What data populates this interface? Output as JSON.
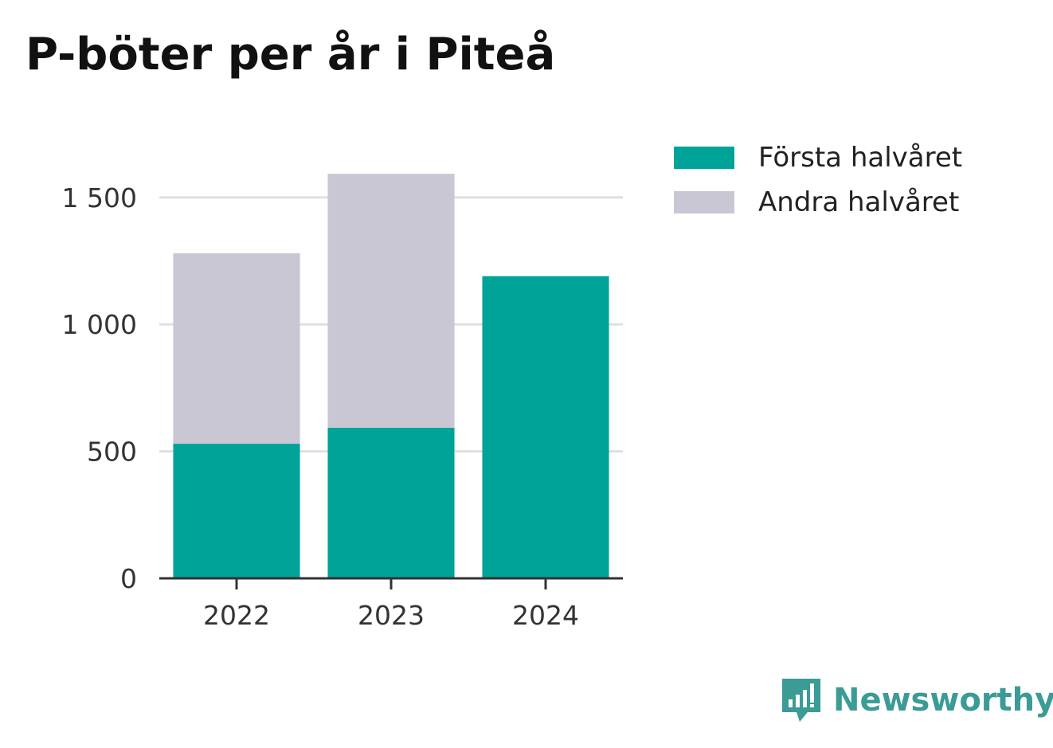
{
  "chart_data": {
    "type": "bar",
    "stacked": true,
    "title": "P-böter per år i Piteå",
    "categories": [
      "2022",
      "2023",
      "2024"
    ],
    "series": [
      {
        "name": "Första halvåret",
        "values": [
          530,
          593,
          1190
        ],
        "color": "#00a398"
      },
      {
        "name": "Andra halvåret",
        "values": [
          750,
          1000,
          null
        ],
        "color": "#c8c7d3"
      }
    ],
    "ylim": [
      0,
      1650
    ],
    "yticks": [
      0,
      500,
      1000,
      1500
    ],
    "ytick_labels": [
      "0",
      "500",
      "1 000",
      "1 500"
    ],
    "xlabel": "",
    "ylabel": "",
    "grid": true,
    "legend_position": "top-right"
  },
  "brand": {
    "name": "Newsworthy",
    "color": "#3b9b95",
    "icon": "newsworthy-logo-icon"
  }
}
